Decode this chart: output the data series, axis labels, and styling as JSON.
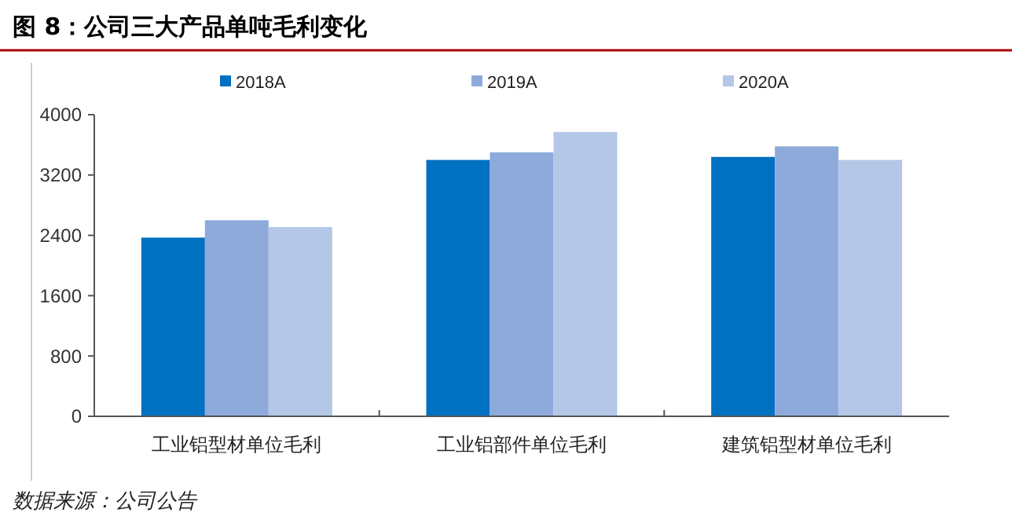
{
  "chart_data": {
    "type": "bar",
    "title": "图 8：公司三大产品单吨毛利变化",
    "categories": [
      "工业铝型材单位毛利",
      "工业铝部件单位毛利",
      "建筑铝型材单位毛利"
    ],
    "series": [
      {
        "name": "2018A",
        "color": "#0070c0",
        "values": [
          2370,
          3400,
          3440
        ]
      },
      {
        "name": "2019A",
        "color": "#8eaadb",
        "values": [
          2600,
          3500,
          3580
        ]
      },
      {
        "name": "2020A",
        "color": "#b4c7e7",
        "values": [
          2510,
          3770,
          3400
        ]
      }
    ],
    "ylim": [
      0,
      4000
    ],
    "yticks": [
      0,
      800,
      1600,
      2400,
      3200,
      4000
    ],
    "grid": false,
    "legend": "top",
    "annotations": [
      "数据来源：公司公告"
    ]
  }
}
